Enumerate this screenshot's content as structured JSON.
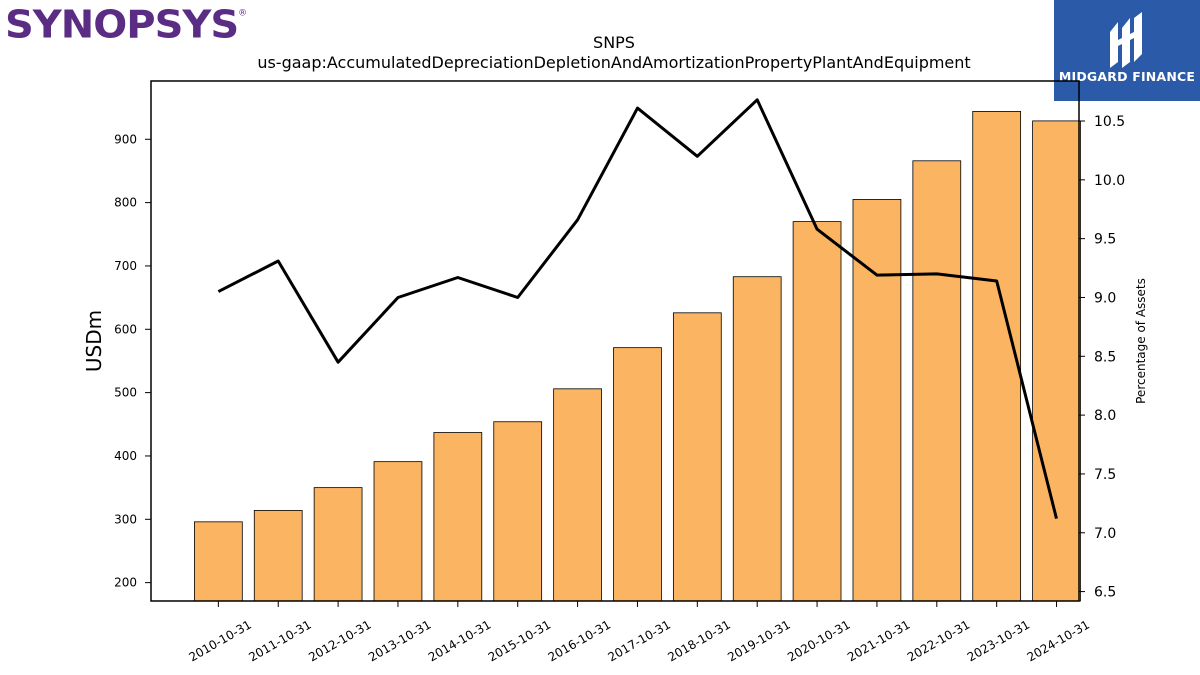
{
  "logos": {
    "left_text": "SYNOPSYS",
    "left_mark": "®",
    "right_text": "MIDGARD FINANCE",
    "right_icon": "midgard-finance-mark-icon"
  },
  "colors": {
    "bar_fill": "#fbb462",
    "bar_stroke": "#000000",
    "line": "#000000",
    "logo_left": "#5b2c83",
    "logo_right_bg": "#2a5aa8"
  },
  "chart_data": {
    "type": "bar",
    "title": "SNPS",
    "subtitle": "us-gaap:AccumulatedDepreciationDepletionAndAmortizationPropertyPlantAndEquipment",
    "ylabel": "USDm",
    "ylabel_right": "Percentage of Assets",
    "categories": [
      "2010-10-31",
      "2011-10-31",
      "2012-10-31",
      "2013-10-31",
      "2014-10-31",
      "2015-10-31",
      "2016-10-31",
      "2017-10-31",
      "2018-10-31",
      "2019-10-31",
      "2020-10-31",
      "2021-10-31",
      "2022-10-31",
      "2023-10-31",
      "2024-10-31"
    ],
    "series": [
      {
        "type": "bar",
        "axis": "left",
        "values": [
          296,
          314,
          350,
          391,
          437,
          454,
          506,
          571,
          626,
          683,
          770,
          805,
          866,
          944,
          929
        ]
      },
      {
        "type": "line",
        "axis": "right",
        "values": [
          9.05,
          9.31,
          8.45,
          9.0,
          9.17,
          9.0,
          9.66,
          10.61,
          10.2,
          10.68,
          9.58,
          9.19,
          9.2,
          9.14,
          7.12
        ]
      }
    ],
    "ylim": [
      171,
      992
    ],
    "ylim_right": [
      6.42,
      10.84
    ],
    "yticks": [
      200,
      300,
      400,
      500,
      600,
      700,
      800,
      900
    ],
    "yticks_right": [
      6.5,
      7.0,
      7.5,
      8.0,
      8.5,
      9.0,
      9.5,
      10.0,
      10.5
    ],
    "grid": false,
    "legend": "none"
  }
}
